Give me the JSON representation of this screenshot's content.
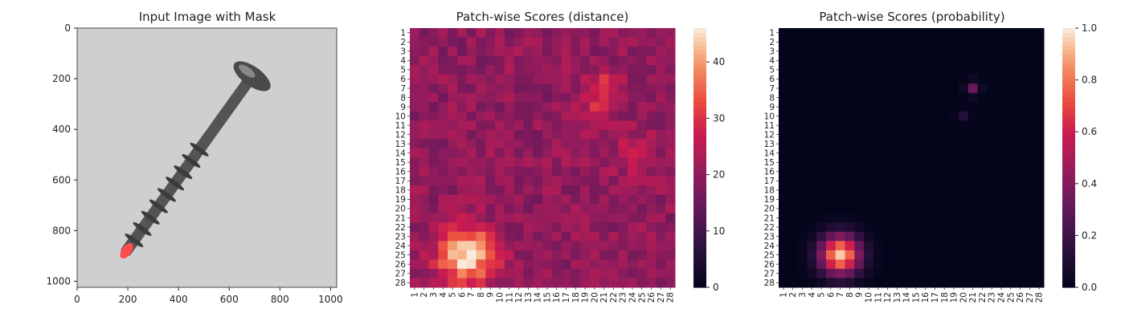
{
  "chart_data": [
    {
      "type": "image",
      "title": "Input Image with Mask",
      "xlim": [
        0,
        1024
      ],
      "ylim": [
        1024,
        0
      ],
      "xticks": [
        "0",
        "200",
        "400",
        "600",
        "800",
        "1000"
      ],
      "yticks": [
        "0",
        "200",
        "400",
        "600",
        "800",
        "1000"
      ],
      "image_description": "grayscale screw on light grey background",
      "mask_color": "#ff4d4d",
      "screw_head": [
        690,
        190
      ],
      "screw_tip": [
        195,
        880
      ]
    },
    {
      "type": "heatmap",
      "title": "Patch-wise Scores (distance)",
      "x_labels": [
        "1",
        "2",
        "3",
        "4",
        "5",
        "6",
        "7",
        "8",
        "9",
        "10",
        "11",
        "12",
        "13",
        "14",
        "15",
        "16",
        "17",
        "18",
        "19",
        "20",
        "21",
        "22",
        "23",
        "24",
        "25",
        "26",
        "27",
        "28"
      ],
      "y_labels": [
        "1",
        "2",
        "3",
        "4",
        "5",
        "6",
        "7",
        "8",
        "9",
        "10",
        "11",
        "12",
        "13",
        "14",
        "15",
        "16",
        "17",
        "18",
        "19",
        "20",
        "21",
        "22",
        "23",
        "24",
        "25",
        "26",
        "27",
        "28"
      ],
      "colorbar_ticks": [
        "0",
        "10",
        "20",
        "30",
        "40"
      ],
      "colorbar_range": [
        0,
        46
      ],
      "base_value": 20,
      "variation": 4,
      "hotspots": [
        {
          "row": 25,
          "col": 6.5,
          "peak": 46,
          "sigma": 2.1
        },
        {
          "row": 7,
          "col": 21,
          "peak": 30,
          "sigma": 1.4
        },
        {
          "row": 10,
          "col": 20,
          "peak": 27,
          "sigma": 1.2
        },
        {
          "row": 14,
          "col": 24,
          "peak": 25,
          "sigma": 1.8
        }
      ]
    },
    {
      "type": "heatmap",
      "title": "Patch-wise Scores (probability)",
      "x_labels": [
        "1",
        "2",
        "3",
        "4",
        "5",
        "6",
        "7",
        "8",
        "9",
        "10",
        "11",
        "12",
        "13",
        "14",
        "15",
        "16",
        "17",
        "18",
        "19",
        "20",
        "21",
        "22",
        "23",
        "24",
        "25",
        "26",
        "27",
        "28"
      ],
      "y_labels": [
        "1",
        "2",
        "3",
        "4",
        "5",
        "6",
        "7",
        "8",
        "9",
        "10",
        "11",
        "12",
        "13",
        "14",
        "15",
        "16",
        "17",
        "18",
        "19",
        "20",
        "21",
        "22",
        "23",
        "24",
        "25",
        "26",
        "27",
        "28"
      ],
      "colorbar_ticks": [
        "0.0",
        "0.2",
        "0.4",
        "0.6",
        "0.8",
        "1.0"
      ],
      "colorbar_range": [
        0,
        1
      ],
      "base_value": 0,
      "variation": 0,
      "hotspots": [
        {
          "row": 25,
          "col": 7,
          "peak": 0.95,
          "sigma": 1.5
        },
        {
          "row": 7,
          "col": 21,
          "peak": 0.33,
          "sigma": 0.5
        },
        {
          "row": 10,
          "col": 20,
          "peak": 0.12,
          "sigma": 0.5
        }
      ]
    }
  ]
}
